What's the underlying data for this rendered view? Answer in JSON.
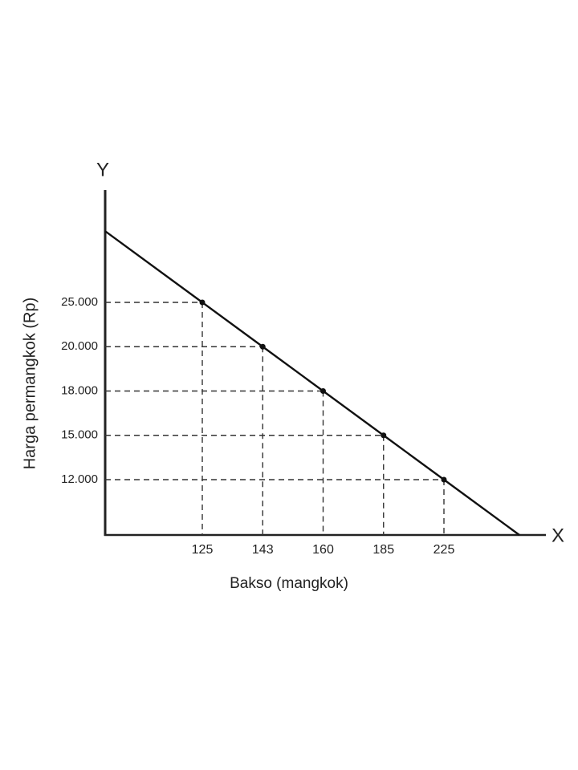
{
  "chart_data": {
    "type": "line",
    "axis_x_name": "X",
    "axis_y_name": "Y",
    "xlabel": "Bakso (mangkok)",
    "ylabel": "Harga permangkok (Rp)",
    "x": [
      125,
      143,
      160,
      185,
      225
    ],
    "values": [
      25000,
      20000,
      18000,
      15000,
      12000
    ],
    "color": "#111111",
    "xticks": [
      125,
      143,
      160,
      185,
      225
    ],
    "yticks": [
      {
        "value": 25000,
        "label": "25.000"
      },
      {
        "value": 20000,
        "label": "20.000"
      },
      {
        "value": 18000,
        "label": "18.000"
      },
      {
        "value": 15000,
        "label": "15.000"
      },
      {
        "value": 12000,
        "label": "12.000"
      }
    ],
    "grid": true
  }
}
